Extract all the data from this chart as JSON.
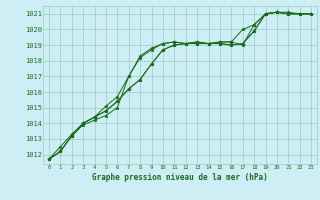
{
  "x": [
    0,
    1,
    2,
    3,
    4,
    5,
    6,
    7,
    8,
    9,
    10,
    11,
    12,
    13,
    14,
    15,
    16,
    17,
    18,
    19,
    20,
    21,
    22,
    23
  ],
  "series": [
    [
      1011.7,
      1012.2,
      1013.2,
      1013.9,
      1014.2,
      1014.5,
      1015.0,
      1017.0,
      1018.2,
      1018.7,
      1019.1,
      1019.2,
      1019.1,
      1019.2,
      1019.1,
      1019.2,
      1019.2,
      1019.0,
      1020.3,
      1021.0,
      1021.1,
      1021.0,
      1021.0,
      1021.0
    ],
    [
      1011.7,
      1012.2,
      1013.2,
      1014.0,
      1014.4,
      1014.8,
      1015.4,
      1016.2,
      1016.8,
      1017.8,
      1018.7,
      1019.0,
      1019.1,
      1019.1,
      1019.1,
      1019.1,
      1019.0,
      1019.1,
      1019.9,
      1021.0,
      1021.1,
      1021.0,
      1021.0,
      1021.0
    ],
    [
      1011.7,
      1012.2,
      1013.2,
      1014.0,
      1014.4,
      1014.8,
      1015.4,
      1016.2,
      1016.8,
      1017.8,
      1018.7,
      1019.0,
      1019.1,
      1019.1,
      1019.1,
      1019.1,
      1019.0,
      1019.1,
      1019.9,
      1021.0,
      1021.1,
      1021.0,
      1021.0,
      1021.0
    ],
    [
      1011.7,
      1012.5,
      1013.3,
      1014.0,
      1014.4,
      1015.1,
      1015.7,
      1017.0,
      1018.3,
      1018.8,
      1019.1,
      1019.2,
      1019.1,
      1019.2,
      1019.1,
      1019.2,
      1019.2,
      1020.0,
      1020.3,
      1021.0,
      1021.1,
      1021.1,
      1021.0,
      1021.0
    ]
  ],
  "line_color": "#1a6b1a",
  "marker_color": "#1a6b1a",
  "bg_color": "#cdeef5",
  "grid_color": "#99ccbb",
  "text_color": "#1a6b1a",
  "xlabel": "Graphe pression niveau de la mer (hPa)",
  "ylim_min": 1011.4,
  "ylim_max": 1021.5,
  "ytick_min": 1012,
  "ytick_max": 1021,
  "ytick_step": 1,
  "xlim_min": -0.5,
  "xlim_max": 23.5
}
